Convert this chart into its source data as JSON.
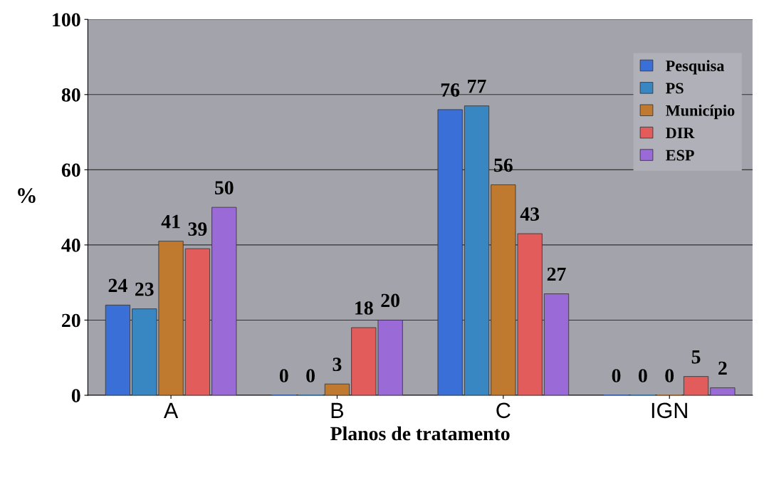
{
  "chart_data": {
    "type": "bar",
    "xlabel": "Planos de tratamento",
    "ylabel": "%",
    "categories": [
      "A",
      "B",
      "C",
      "IGN"
    ],
    "series": [
      {
        "name": "Pesquisa",
        "color": "#3a6fd8",
        "values": [
          24,
          0,
          76,
          0
        ]
      },
      {
        "name": "PS",
        "color": "#3987c2",
        "values": [
          23,
          0,
          77,
          0
        ]
      },
      {
        "name": "Município",
        "color": "#c07a30",
        "values": [
          41,
          3,
          56,
          0
        ]
      },
      {
        "name": "DIR",
        "color": "#e25c5c",
        "values": [
          39,
          18,
          43,
          5
        ]
      },
      {
        "name": "ESP",
        "color": "#9a6ad6",
        "values": [
          50,
          20,
          27,
          2
        ]
      }
    ],
    "ylim": [
      0,
      100
    ],
    "yticks": [
      0,
      20,
      40,
      60,
      80,
      100
    ],
    "grid": "y",
    "legend": "top right",
    "data_labels": true
  }
}
